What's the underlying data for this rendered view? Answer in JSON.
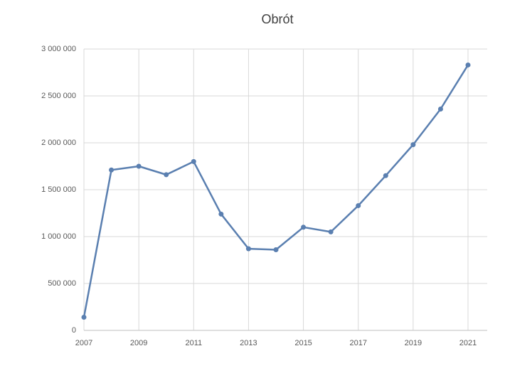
{
  "chart_data": {
    "type": "line",
    "title": "Obrót",
    "x": [
      2007,
      2008,
      2009,
      2010,
      2011,
      2012,
      2013,
      2014,
      2015,
      2016,
      2017,
      2018,
      2019,
      2020,
      2021
    ],
    "series": [
      {
        "color": "#5a7fb0",
        "values": [
          140000,
          1710000,
          1750000,
          1660000,
          1800000,
          1240000,
          870000,
          860000,
          1100000,
          1050000,
          1330000,
          1650000,
          1980000,
          2360000,
          2830000
        ]
      }
    ],
    "xlim": [
      2007,
      2021.7
    ],
    "xticks": [
      2007,
      2009,
      2011,
      2013,
      2015,
      2017,
      2019,
      2021
    ],
    "ylim": [
      0,
      3000000
    ],
    "yticks": [
      0,
      {
        "value": 500000,
        "label": "500 000"
      },
      {
        "value": 1000000,
        "label": "1 000 000"
      },
      {
        "value": 1500000,
        "label": "1 500 000"
      },
      {
        "value": 2000000,
        "label": "2 000 000"
      },
      {
        "value": 2500000,
        "label": "2 500 000"
      },
      {
        "value": 3000000,
        "label": "3 000 000"
      }
    ],
    "grid": true
  }
}
